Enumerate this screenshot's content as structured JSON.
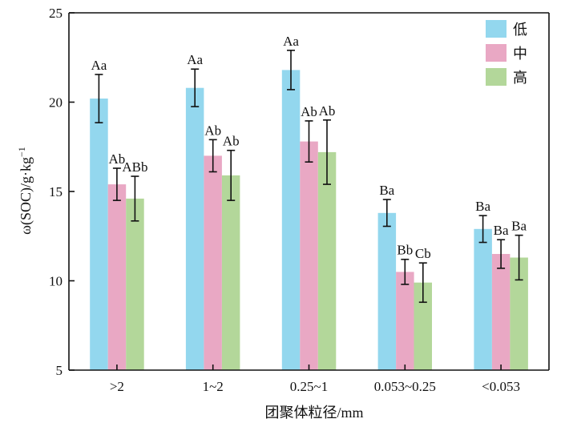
{
  "chart_data": {
    "type": "bar",
    "categories": [
      ">2",
      "1~2",
      "0.25~1",
      "0.053~0.25",
      "<0.053"
    ],
    "series": [
      {
        "name": "低",
        "color": "#93D7EE",
        "values": [
          20.2,
          20.8,
          21.8,
          13.8,
          12.9
        ],
        "errors": [
          1.35,
          1.05,
          1.1,
          0.75,
          0.75
        ],
        "labels": [
          "Aa",
          "Aa",
          "Aa",
          "Ba",
          "Ba"
        ]
      },
      {
        "name": "中",
        "color": "#E9A8C4",
        "values": [
          15.4,
          17.0,
          17.8,
          10.5,
          11.5
        ],
        "errors": [
          0.9,
          0.9,
          1.15,
          0.7,
          0.8
        ],
        "labels": [
          "Ab",
          "Ab",
          "Ab",
          "Bb",
          "Ba"
        ]
      },
      {
        "name": "高",
        "color": "#B3D79A",
        "values": [
          14.6,
          15.9,
          17.2,
          9.9,
          11.3
        ],
        "errors": [
          1.25,
          1.4,
          1.8,
          1.1,
          1.25
        ],
        "labels": [
          "ABb",
          "Ab",
          "Ab",
          "Cb",
          "Ba"
        ]
      }
    ],
    "xlabel": "团聚体粒径/mm",
    "ylabel": "ω(SOC)/g·kg",
    "ylabel_sup": "−1",
    "ylim": [
      5,
      25
    ],
    "yticks": [
      "5",
      "10",
      "15",
      "20",
      "25"
    ],
    "grid": false,
    "legend_position": "top-right"
  }
}
